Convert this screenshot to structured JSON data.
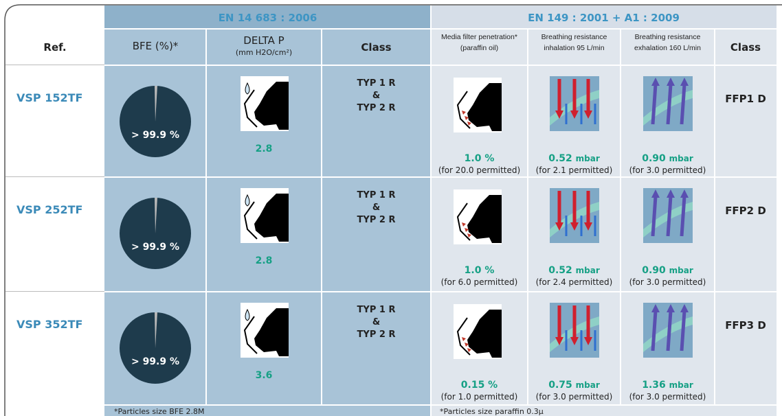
{
  "header": {
    "standards": [
      "EN 14 683 : 2006",
      "EN 149 : 2001 + A1 : 2009"
    ],
    "columns": [
      {
        "title": "Ref."
      },
      {
        "title": "BFE (%)*"
      },
      {
        "title": "DELTA P",
        "subtitle": "(mm H2O/cm²)"
      },
      {
        "title": "Class"
      },
      {
        "title": "Media filter penetration*",
        "subtitle": "(paraffin oil)"
      },
      {
        "title": "Breathing resistance",
        "subtitle": "inhalation 95 L/min"
      },
      {
        "title": "Breathing resistance",
        "subtitle": "exhalation 160 L/min"
      },
      {
        "title": "Class"
      }
    ]
  },
  "rows": [
    {
      "ref": "VSP 152TF",
      "bfe": "> 99.9 %",
      "delta_p": "2.8",
      "class_en14683": [
        "TYP 1 R",
        "&",
        "TYP 2 R"
      ],
      "penetration": {
        "value": "1.0 %",
        "note": "(for 20.0 permitted)"
      },
      "inhalation": {
        "value": "0.52",
        "unit": "mbar",
        "note": "(for 2.1 permitted)"
      },
      "exhalation": {
        "value": "0.90",
        "unit": "mbar",
        "note": "(for 3.0 permitted)"
      },
      "class_en149": "FFP1 D"
    },
    {
      "ref": "VSP 252TF",
      "bfe": "> 99.9 %",
      "delta_p": "2.8",
      "class_en14683": [
        "TYP 1 R",
        "&",
        "TYP 2 R"
      ],
      "penetration": {
        "value": "1.0 %",
        "note": "(for 6.0 permitted)"
      },
      "inhalation": {
        "value": "0.52",
        "unit": "mbar",
        "note": "(for 2.4 permitted)"
      },
      "exhalation": {
        "value": "0.90",
        "unit": "mbar",
        "note": "(for 3.0 permitted)"
      },
      "class_en149": "FFP2 D"
    },
    {
      "ref": "VSP 352TF",
      "bfe": "> 99.9 %",
      "delta_p": "3.6",
      "class_en14683": [
        "TYP 1 R",
        "&",
        "TYP 2 R"
      ],
      "penetration": {
        "value": "0.15 %",
        "note": "(for 1.0 permitted)"
      },
      "inhalation": {
        "value": "0.75",
        "unit": "mbar",
        "note": "(for 3.0 permitted)"
      },
      "exhalation": {
        "value": "1.36",
        "unit": "mbar",
        "note": "(for 3.0 permitted)"
      },
      "class_en149": "FFP3 D"
    }
  ],
  "footnotes": [
    "*Particles size BFE 2.8M",
    "*Particles size paraffin 0.3μ"
  ]
}
